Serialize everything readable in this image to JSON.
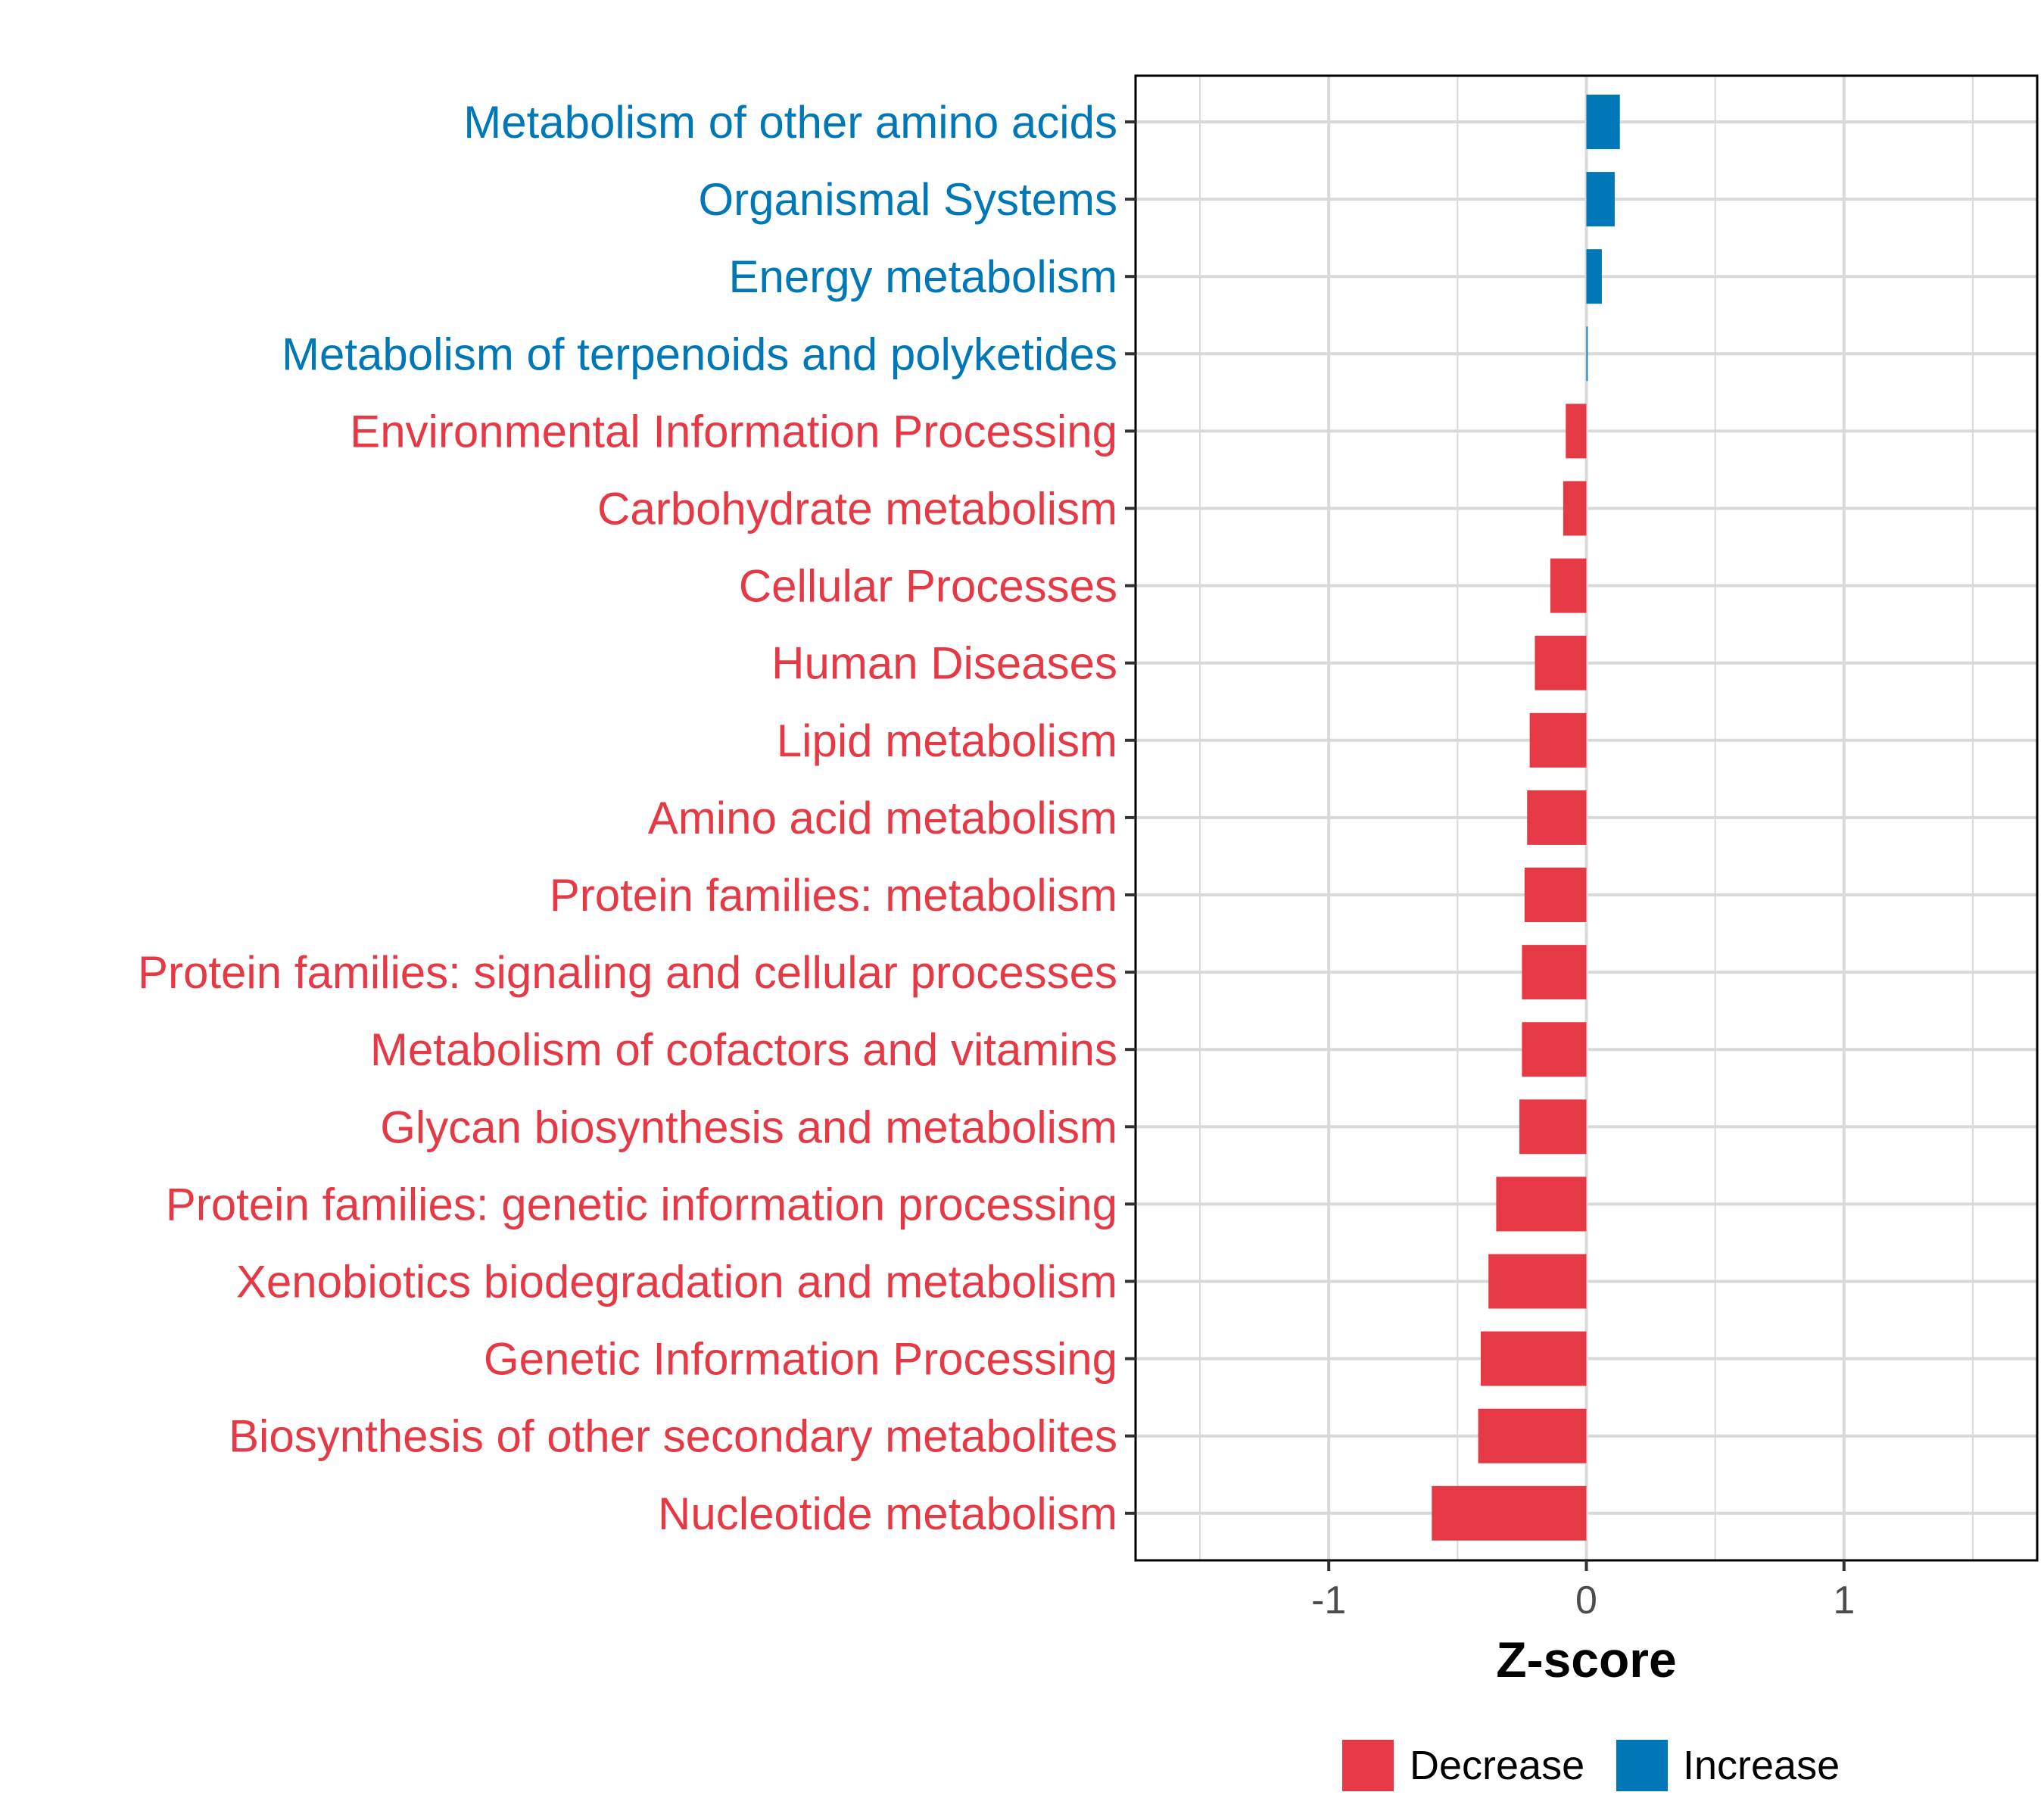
{
  "chart_data": {
    "type": "bar",
    "orientation": "horizontal",
    "xlabel": "Z-score",
    "xlim": [
      -1.75,
      1.75
    ],
    "xticks": [
      {
        "value": -1,
        "label": "-1"
      },
      {
        "value": 0,
        "label": "0"
      },
      {
        "value": 1,
        "label": "1"
      }
    ],
    "grid": true,
    "legend": {
      "placement": "bottom",
      "entries": [
        {
          "label": "Decrease",
          "color": "#E63946"
        },
        {
          "label": "Increase",
          "color": "#0077B6"
        }
      ]
    },
    "colors": {
      "Decrease": "#E63946",
      "Increase": "#0077B6",
      "grid": "#D9D9D9",
      "border": "#000000"
    },
    "bars": [
      {
        "category": "Metabolism of other amino acids",
        "value": 0.13,
        "direction": "Increase"
      },
      {
        "category": "Organismal Systems",
        "value": 0.11,
        "direction": "Increase"
      },
      {
        "category": "Energy metabolism",
        "value": 0.06,
        "direction": "Increase"
      },
      {
        "category": "Metabolism of terpenoids and polyketides",
        "value": 0.005,
        "direction": "Increase"
      },
      {
        "category": "Environmental Information Processing",
        "value": -0.08,
        "direction": "Decrease"
      },
      {
        "category": "Carbohydrate metabolism",
        "value": -0.09,
        "direction": "Decrease"
      },
      {
        "category": "Cellular Processes",
        "value": -0.14,
        "direction": "Decrease"
      },
      {
        "category": "Human Diseases",
        "value": -0.2,
        "direction": "Decrease"
      },
      {
        "category": "Lipid metabolism",
        "value": -0.22,
        "direction": "Decrease"
      },
      {
        "category": "Amino acid metabolism",
        "value": -0.23,
        "direction": "Decrease"
      },
      {
        "category": "Protein families: metabolism",
        "value": -0.24,
        "direction": "Decrease"
      },
      {
        "category": "Protein families: signaling and cellular processes",
        "value": -0.25,
        "direction": "Decrease"
      },
      {
        "category": "Metabolism of cofactors and vitamins",
        "value": -0.25,
        "direction": "Decrease"
      },
      {
        "category": "Glycan biosynthesis and metabolism",
        "value": -0.26,
        "direction": "Decrease"
      },
      {
        "category": "Protein families: genetic information processing",
        "value": -0.35,
        "direction": "Decrease"
      },
      {
        "category": "Xenobiotics biodegradation and metabolism",
        "value": -0.38,
        "direction": "Decrease"
      },
      {
        "category": "Genetic Information Processing",
        "value": -0.41,
        "direction": "Decrease"
      },
      {
        "category": "Biosynthesis of other secondary metabolites",
        "value": -0.42,
        "direction": "Decrease"
      },
      {
        "category": "Nucleotide metabolism",
        "value": -0.6,
        "direction": "Decrease"
      }
    ]
  }
}
